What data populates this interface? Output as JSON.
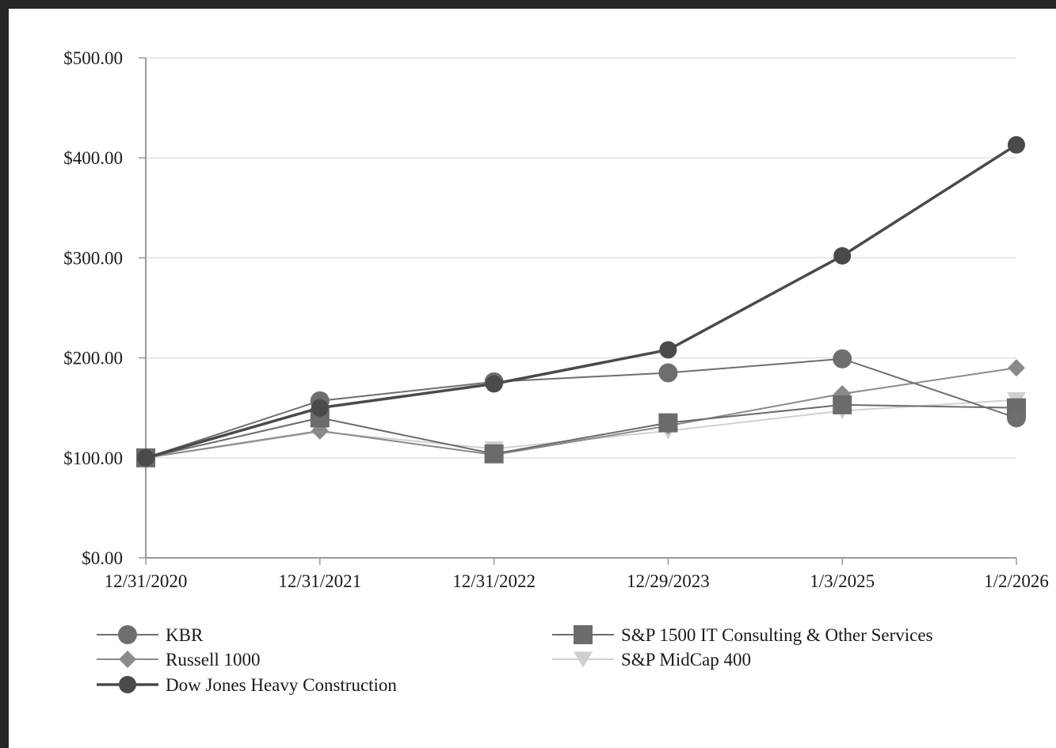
{
  "chart_data": {
    "type": "line",
    "title": "",
    "xlabel": "",
    "ylabel": "",
    "categories": [
      "12/31/2020",
      "12/31/2021",
      "12/31/2022",
      "12/29/2023",
      "1/3/2025",
      "1/2/2026"
    ],
    "ylim": [
      0,
      500
    ],
    "yticks": [
      "$0.00",
      "$100.00",
      "$200.00",
      "$300.00",
      "$400.00",
      "$500.00"
    ],
    "grid": true,
    "legend_position": "bottom",
    "series": [
      {
        "name": "KBR",
        "values": [
          100,
          157,
          176,
          185,
          199,
          140
        ],
        "color": "#6e6e6e",
        "marker": "circle"
      },
      {
        "name": "S&P 1500 IT Consulting & Other Services",
        "values": [
          100,
          140,
          104,
          135,
          153,
          150
        ],
        "color": "#6b6b6b",
        "marker": "square"
      },
      {
        "name": "Russell 1000",
        "values": [
          100,
          127,
          103,
          132,
          164,
          190
        ],
        "color": "#8a8a8a",
        "marker": "diamond"
      },
      {
        "name": "S&P MidCap 400",
        "values": [
          100,
          126,
          109,
          127,
          147,
          158
        ],
        "color": "#d0d0d0",
        "marker": "triangle-down"
      },
      {
        "name": "Dow Jones Heavy Construction",
        "values": [
          100,
          150,
          174,
          208,
          302,
          413
        ],
        "color": "#4a4a4a",
        "marker": "circle-dark"
      }
    ]
  }
}
